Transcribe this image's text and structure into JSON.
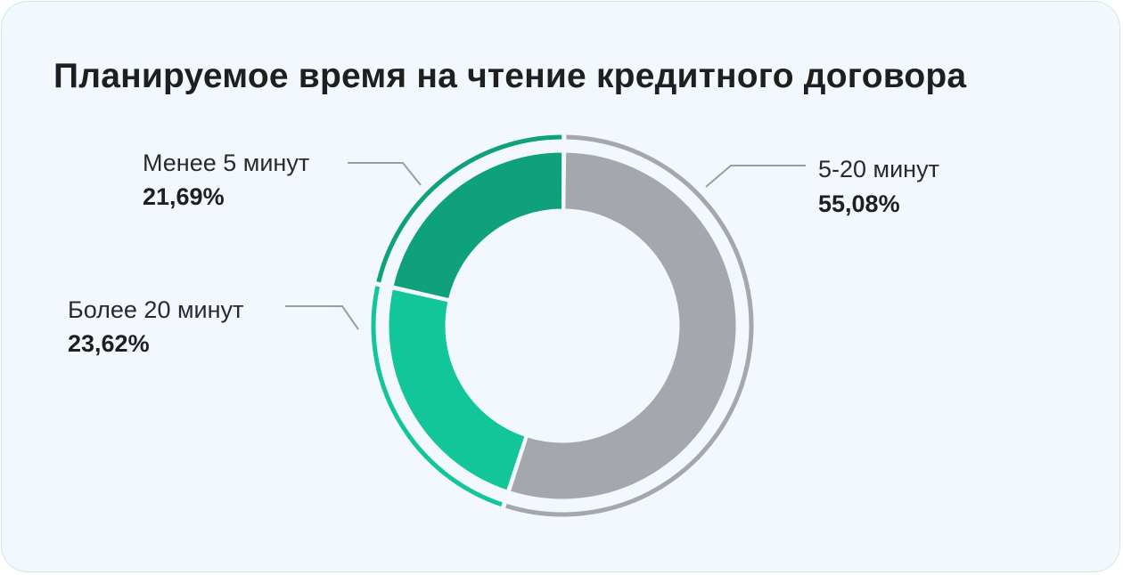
{
  "chart_data": {
    "type": "pie",
    "title": "Планируемое время на чтение кредитного договора",
    "categories": [
      "5-20 минут",
      "Более 20 минут",
      "Менее 5 минут"
    ],
    "values": [
      55.08,
      23.62,
      21.69
    ],
    "value_labels": [
      "55,08%",
      "23,62%",
      "21,69%"
    ],
    "colors": [
      "#a4a7ab",
      "#13c69a",
      "#0fa07c"
    ],
    "style": "donut"
  }
}
